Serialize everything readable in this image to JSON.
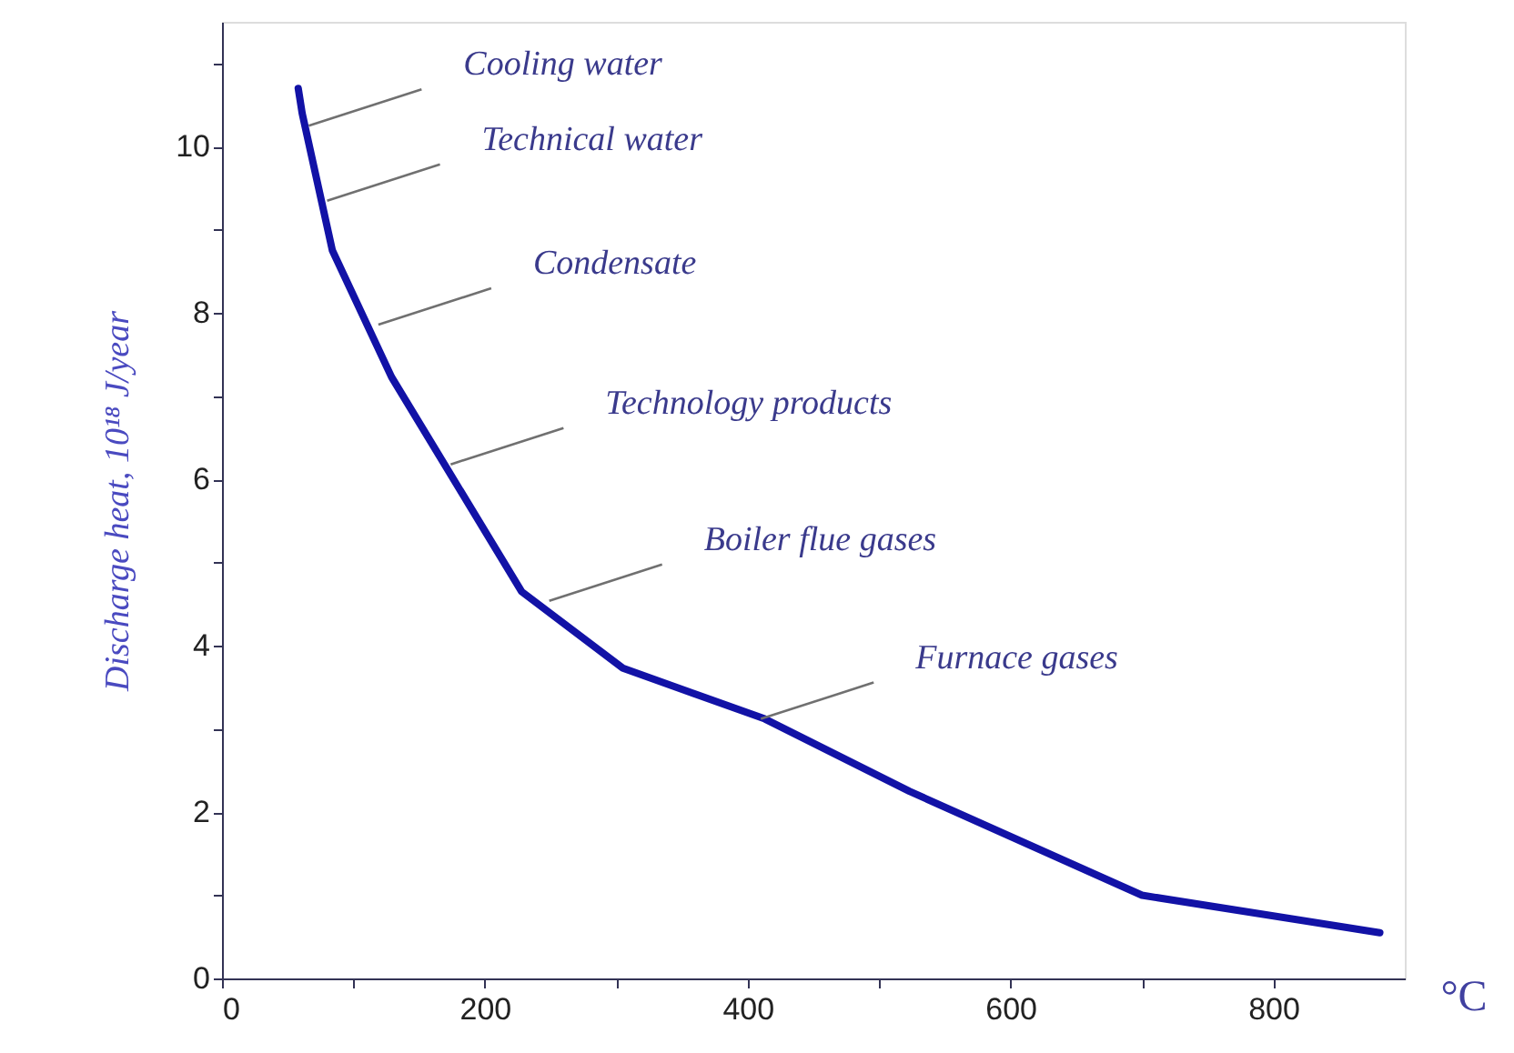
{
  "chart_data": {
    "type": "line",
    "xlabel": "°C",
    "ylabel": "Discharge heat, 10¹⁸ J/year",
    "x": [
      58,
      61,
      84,
      129,
      228,
      305,
      413,
      523,
      700,
      881
    ],
    "series": [
      {
        "color": "#1212a6",
        "values": [
          10.7,
          10.4,
          8.75,
          7.23,
          4.65,
          3.73,
          3.12,
          2.25,
          1.0,
          0.55
        ]
      }
    ],
    "annotations": [
      {
        "text": "Cooling water",
        "x": 66,
        "y": 10.25
      },
      {
        "text": "Technical water",
        "x": 80,
        "y": 9.35
      },
      {
        "text": "Condensate",
        "x": 119,
        "y": 7.86
      },
      {
        "text": "Technology products",
        "x": 174,
        "y": 6.18
      },
      {
        "text": "Boiler flue gases",
        "x": 249,
        "y": 4.54
      },
      {
        "text": "Furnace gases",
        "x": 410,
        "y": 3.12
      }
    ],
    "xlim": [
      0,
      900
    ],
    "xticks": [
      0,
      {
        "value": 100,
        "label": null
      },
      200,
      {
        "value": 300,
        "label": null
      },
      400,
      {
        "value": 500,
        "label": null
      },
      600,
      {
        "value": 700,
        "label": null
      },
      800
    ],
    "ylim": [
      0,
      11.5
    ],
    "yticks": [
      0,
      {
        "value": 1,
        "label": null
      },
      2,
      {
        "value": 3,
        "label": null
      },
      4,
      {
        "value": 5,
        "label": null
      },
      6,
      {
        "value": 7,
        "label": null
      },
      8,
      {
        "value": 9,
        "label": null
      },
      10,
      {
        "value": 11,
        "label": null
      }
    ],
    "grid": false,
    "marker": "none",
    "line_style": "solid"
  }
}
